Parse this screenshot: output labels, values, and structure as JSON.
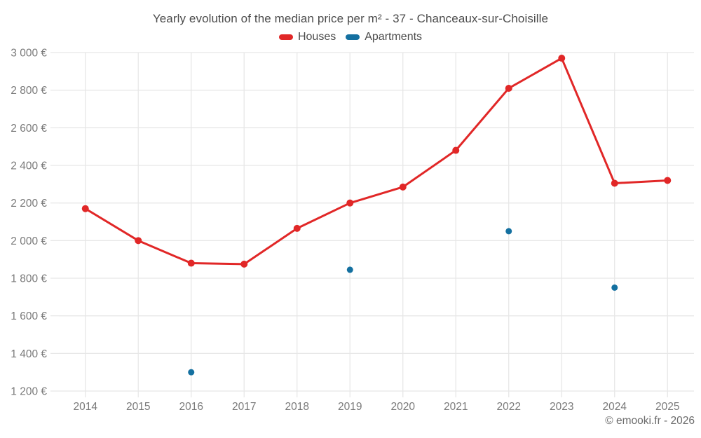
{
  "page": {
    "footer": "© emooki.fr - 2026"
  },
  "colors": {
    "houses": "#e12727",
    "apartments": "#1470a0",
    "grid": "#e7e7e7",
    "axis_text": "#7a7a7a",
    "title_text": "#4c4c4c",
    "footer_text": "#6b6b6b",
    "background": "#ffffff"
  },
  "chart_data": {
    "type": "line",
    "title": "Yearly evolution of the median price per m² - 37 - Chanceaux-sur-Choisille",
    "xlabel": "",
    "ylabel": "",
    "categories": [
      "2014",
      "2015",
      "2016",
      "2017",
      "2018",
      "2019",
      "2020",
      "2021",
      "2022",
      "2023",
      "2024",
      "2025"
    ],
    "series": [
      {
        "name": "Houses",
        "mode": "line+markers",
        "color": "#e12727",
        "values": [
          2170,
          2000,
          1880,
          1875,
          2065,
          2200,
          2285,
          2480,
          2810,
          2970,
          2305,
          2320
        ]
      },
      {
        "name": "Apartments",
        "mode": "markers",
        "color": "#1470a0",
        "values": [
          null,
          null,
          1300,
          null,
          null,
          1845,
          null,
          null,
          2050,
          null,
          1750,
          null
        ]
      }
    ],
    "ylim": [
      1200,
      3000
    ],
    "y_ticks": [
      {
        "value": 1200,
        "label": "1 200 €"
      },
      {
        "value": 1400,
        "label": "1 400 €"
      },
      {
        "value": 1600,
        "label": "1 600 €"
      },
      {
        "value": 1800,
        "label": "1 800 €"
      },
      {
        "value": 2000,
        "label": "2 000 €"
      },
      {
        "value": 2200,
        "label": "2 200 €"
      },
      {
        "value": 2400,
        "label": "2 400 €"
      },
      {
        "value": 2600,
        "label": "2 600 €"
      },
      {
        "value": 2800,
        "label": "2 800 €"
      },
      {
        "value": 3000,
        "label": "3 000 €"
      }
    ],
    "grid": true,
    "legend_position": "top"
  }
}
